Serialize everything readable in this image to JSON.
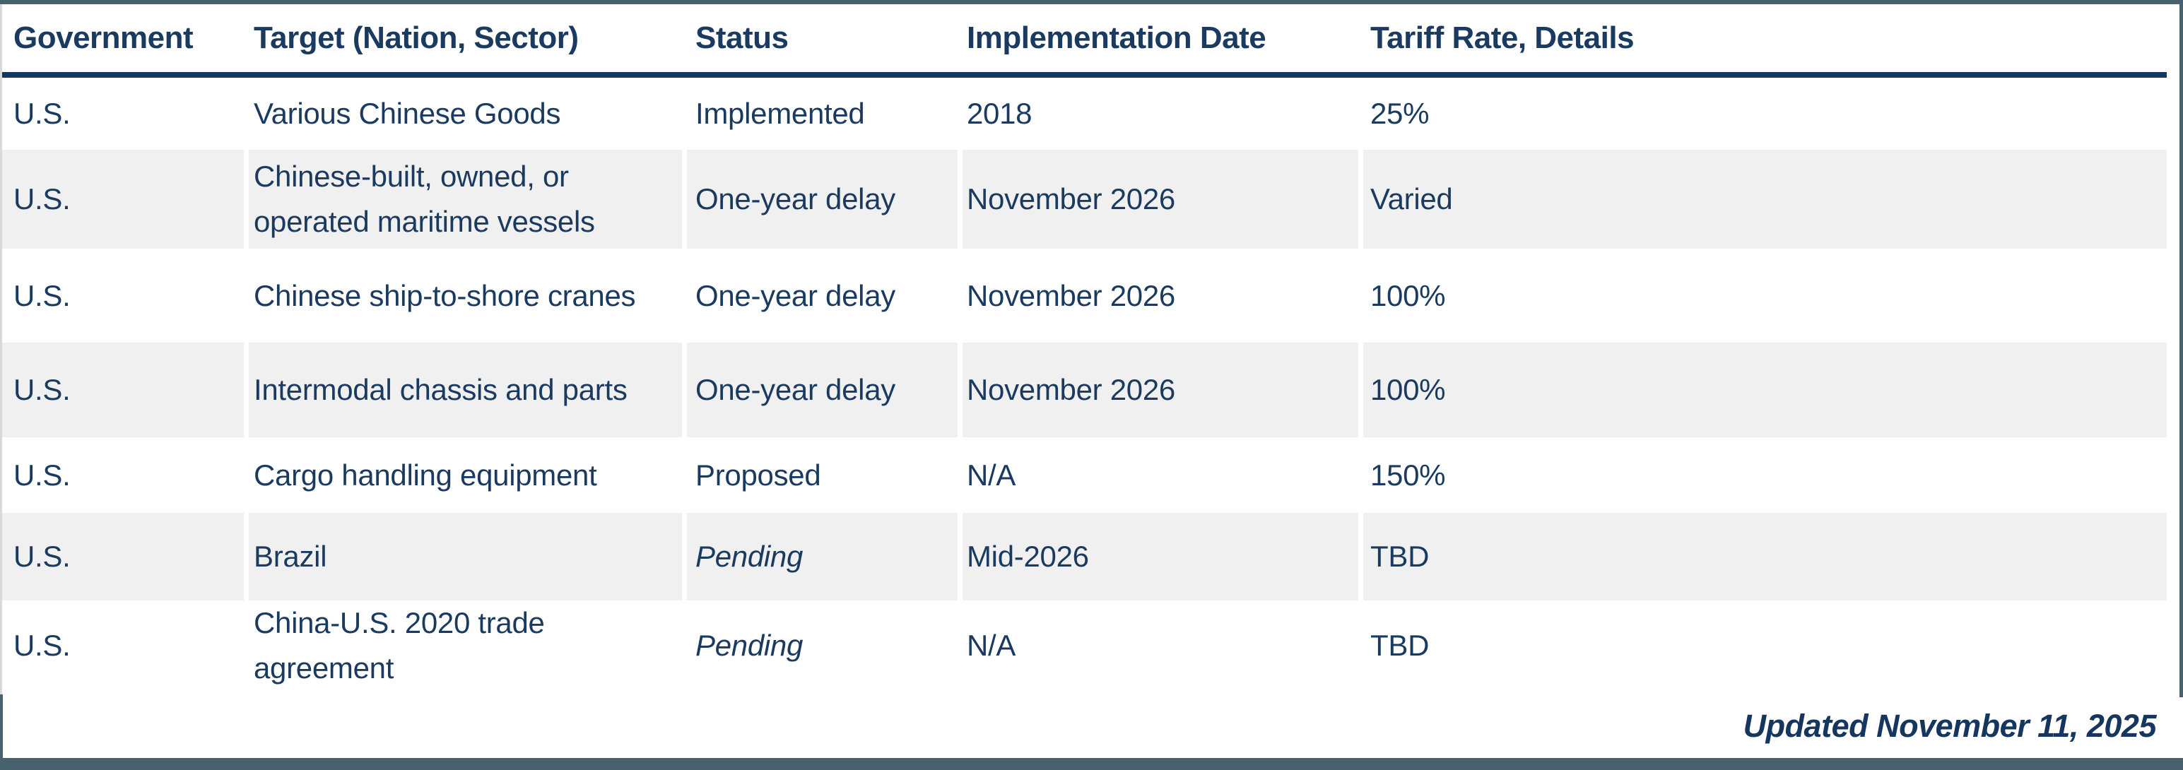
{
  "chart_data": {
    "type": "table",
    "title": "",
    "columns": [
      "Government",
      "Target (Nation, Sector)",
      "Status",
      "Implementation Date",
      "Tariff Rate, Details"
    ],
    "rows": [
      {
        "government": "U.S.",
        "target": "Various Chinese Goods",
        "status": "Implemented",
        "date": "2018",
        "rate": "25%"
      },
      {
        "government": "U.S.",
        "target": "Chinese-built, owned, or operated maritime vessels",
        "status": "One-year delay",
        "date": "November 2026",
        "rate": "Varied"
      },
      {
        "government": "U.S.",
        "target": "Chinese ship-to-shore cranes",
        "status": "One-year delay",
        "date": "November 2026",
        "rate": "100%"
      },
      {
        "government": "U.S.",
        "target": "Intermodal chassis and parts",
        "status": "One-year delay",
        "date": "November 2026",
        "rate": "100%"
      },
      {
        "government": "U.S.",
        "target": "Cargo handling equipment",
        "status": "Proposed",
        "date": "N/A",
        "rate": "150%"
      },
      {
        "government": "U.S.",
        "target": "Brazil",
        "status": "Pending",
        "date": "Mid-2026",
        "rate": "TBD"
      },
      {
        "government": "U.S.",
        "target": "China-U.S. 2020 trade agreement",
        "status": "Pending",
        "date": "N/A",
        "rate": "TBD"
      }
    ],
    "footer_note": "Updated November 11, 2025",
    "layout_hints": {
      "alternating_row_shading": true,
      "italic_statuses": [
        "Pending"
      ],
      "colors": {
        "accent_teal": "#47626c",
        "header_rule_navy": "#15365e",
        "text_navy": "#1a3a5f",
        "alt_row_gray": "#f0f0f0",
        "left_edge_gray": "#d9d9d9"
      }
    }
  }
}
